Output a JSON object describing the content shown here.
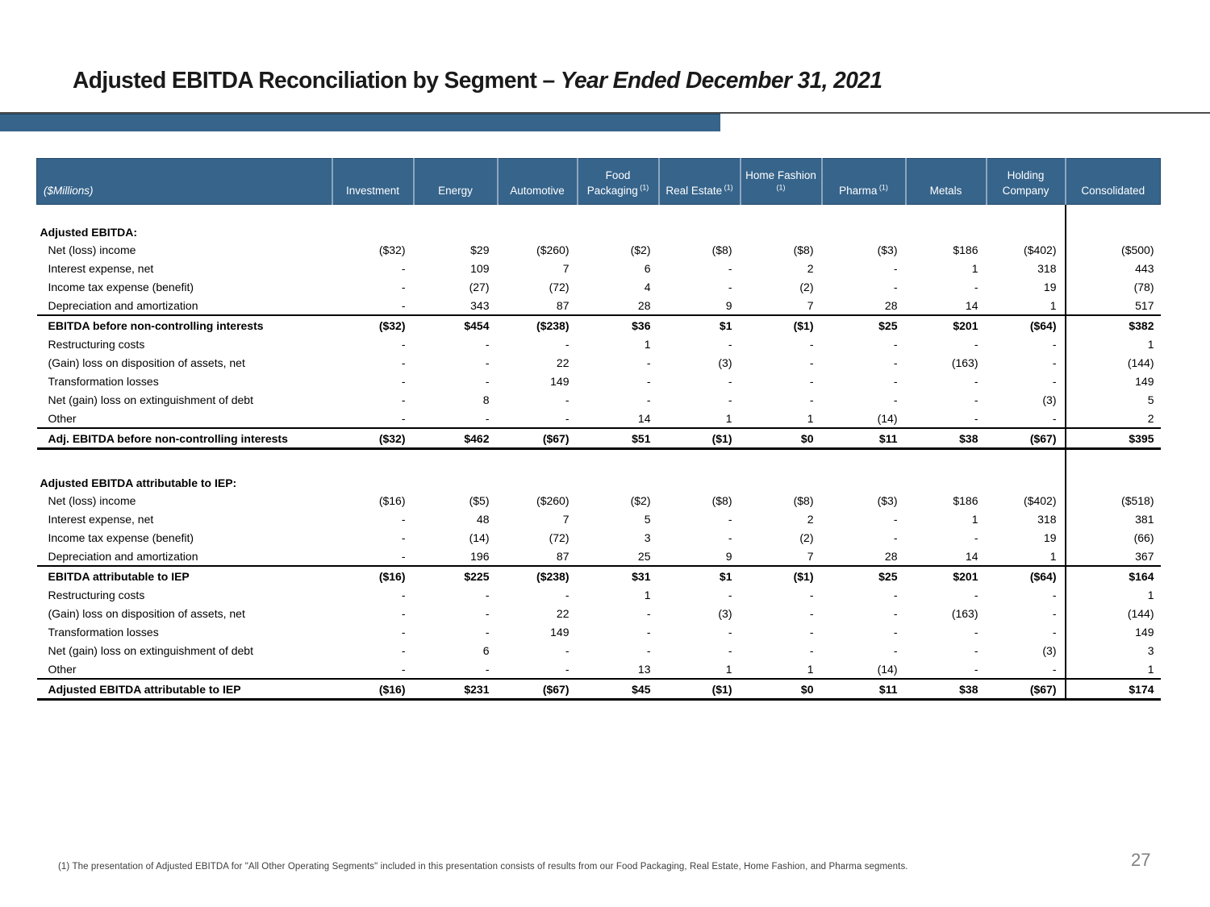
{
  "title": {
    "main": "Adjusted EBITDA Reconciliation by Segment – ",
    "emphasis": "Year Ended December 31, 2021"
  },
  "page_number": "27",
  "footnote": "(1) The presentation of Adjusted EBITDA for \"All Other Operating Segments\" included in this presentation consists of results from our Food Packaging, Real Estate, Home Fashion, and Pharma segments.",
  "colors": {
    "accent_bar": "#36648B",
    "header_bg": "#36648B",
    "header_text": "#ffffff",
    "rule_line": "#4d4d4d",
    "table_line": "#000000",
    "page_number": "#808080"
  },
  "table": {
    "unit_label": "($Millions)",
    "columns": [
      {
        "label": "Investment",
        "sup": ""
      },
      {
        "label": "Energy",
        "sup": ""
      },
      {
        "label": "Automotive",
        "sup": ""
      },
      {
        "label": "Food Packaging",
        "sup": "(1)"
      },
      {
        "label": "Real Estate",
        "sup": "(1)"
      },
      {
        "label": "Home Fashion",
        "sup": "(1)"
      },
      {
        "label": "Pharma",
        "sup": "(1)"
      },
      {
        "label": "Metals",
        "sup": ""
      },
      {
        "label": "Holding Company",
        "sup": ""
      },
      {
        "label": "Consolidated",
        "sup": "",
        "divider_left": true
      }
    ],
    "sections": [
      {
        "heading": "Adjusted EBITDA:",
        "rows": [
          {
            "label": "Net (loss) income",
            "type": "data",
            "values": [
              "($32)",
              "$29",
              "($260)",
              "($2)",
              "($8)",
              "($8)",
              "($3)",
              "$186",
              "($402)",
              "($500)"
            ]
          },
          {
            "label": "Interest expense, net",
            "type": "data",
            "values": [
              "-",
              "109",
              "7",
              "6",
              "-",
              "2",
              "-",
              "1",
              "318",
              "443"
            ]
          },
          {
            "label": "Income tax expense (benefit)",
            "type": "data",
            "values": [
              "-",
              "(27)",
              "(72)",
              "4",
              "-",
              "(2)",
              "-",
              "-",
              "19",
              "(78)"
            ]
          },
          {
            "label": "Depreciation and amortization",
            "type": "data",
            "values": [
              "-",
              "343",
              "87",
              "28",
              "9",
              "7",
              "28",
              "14",
              "1",
              "517"
            ]
          },
          {
            "label": "EBITDA before non-controlling interests",
            "type": "total",
            "values": [
              "($32)",
              "$454",
              "($238)",
              "$36",
              "$1",
              "($1)",
              "$25",
              "$201",
              "($64)",
              "$382"
            ]
          },
          {
            "label": "Restructuring costs",
            "type": "data",
            "values": [
              "-",
              "-",
              "-",
              "1",
              "-",
              "-",
              "-",
              "-",
              "-",
              "1"
            ]
          },
          {
            "label": "(Gain) loss on disposition of assets, net",
            "type": "data",
            "values": [
              "-",
              "-",
              "22",
              "-",
              "(3)",
              "-",
              "-",
              "(163)",
              "-",
              "(144)"
            ]
          },
          {
            "label": "Transformation losses",
            "type": "data",
            "values": [
              "-",
              "-",
              "149",
              "-",
              "-",
              "-",
              "-",
              "-",
              "-",
              "149"
            ]
          },
          {
            "label": "Net (gain) loss on extinguishment of debt",
            "type": "data",
            "values": [
              "-",
              "8",
              "-",
              "-",
              "-",
              "-",
              "-",
              "-",
              "(3)",
              "5"
            ]
          },
          {
            "label": "Other",
            "type": "data",
            "values": [
              "-",
              "-",
              "-",
              "14",
              "1",
              "1",
              "(14)",
              "-",
              "-",
              "2"
            ]
          },
          {
            "label": "Adj. EBITDA before non-controlling interests",
            "type": "grand",
            "values": [
              "($32)",
              "$462",
              "($67)",
              "$51",
              "($1)",
              "$0",
              "$11",
              "$38",
              "($67)",
              "$395"
            ]
          }
        ]
      },
      {
        "heading": "Adjusted EBITDA attributable to IEP:",
        "rows": [
          {
            "label": "Net (loss) income",
            "type": "data",
            "values": [
              "($16)",
              "($5)",
              "($260)",
              "($2)",
              "($8)",
              "($8)",
              "($3)",
              "$186",
              "($402)",
              "($518)"
            ]
          },
          {
            "label": "Interest expense, net",
            "type": "data",
            "values": [
              "-",
              "48",
              "7",
              "5",
              "-",
              "2",
              "-",
              "1",
              "318",
              "381"
            ]
          },
          {
            "label": "Income tax expense (benefit)",
            "type": "data",
            "values": [
              "-",
              "(14)",
              "(72)",
              "3",
              "-",
              "(2)",
              "-",
              "-",
              "19",
              "(66)"
            ]
          },
          {
            "label": "Depreciation and amortization",
            "type": "data",
            "values": [
              "-",
              "196",
              "87",
              "25",
              "9",
              "7",
              "28",
              "14",
              "1",
              "367"
            ]
          },
          {
            "label": "EBITDA attributable to IEP",
            "type": "total",
            "values": [
              "($16)",
              "$225",
              "($238)",
              "$31",
              "$1",
              "($1)",
              "$25",
              "$201",
              "($64)",
              "$164"
            ]
          },
          {
            "label": "Restructuring costs",
            "type": "data",
            "values": [
              "-",
              "-",
              "-",
              "1",
              "-",
              "-",
              "-",
              "-",
              "-",
              "1"
            ]
          },
          {
            "label": "(Gain) loss on disposition of assets, net",
            "type": "data",
            "values": [
              "-",
              "-",
              "22",
              "-",
              "(3)",
              "-",
              "-",
              "(163)",
              "-",
              "(144)"
            ]
          },
          {
            "label": "Transformation losses",
            "type": "data",
            "values": [
              "-",
              "-",
              "149",
              "-",
              "-",
              "-",
              "-",
              "-",
              "-",
              "149"
            ]
          },
          {
            "label": "Net (gain) loss on extinguishment of debt",
            "type": "data",
            "values": [
              "-",
              "6",
              "-",
              "-",
              "-",
              "-",
              "-",
              "-",
              "(3)",
              "3"
            ]
          },
          {
            "label": "Other",
            "type": "data",
            "values": [
              "-",
              "-",
              "-",
              "13",
              "1",
              "1",
              "(14)",
              "-",
              "-",
              "1"
            ]
          },
          {
            "label": "Adjusted EBITDA attributable to IEP",
            "type": "grand",
            "values": [
              "($16)",
              "$231",
              "($67)",
              "$45",
              "($1)",
              "$0",
              "$11",
              "$38",
              "($67)",
              "$174"
            ]
          }
        ]
      }
    ]
  }
}
